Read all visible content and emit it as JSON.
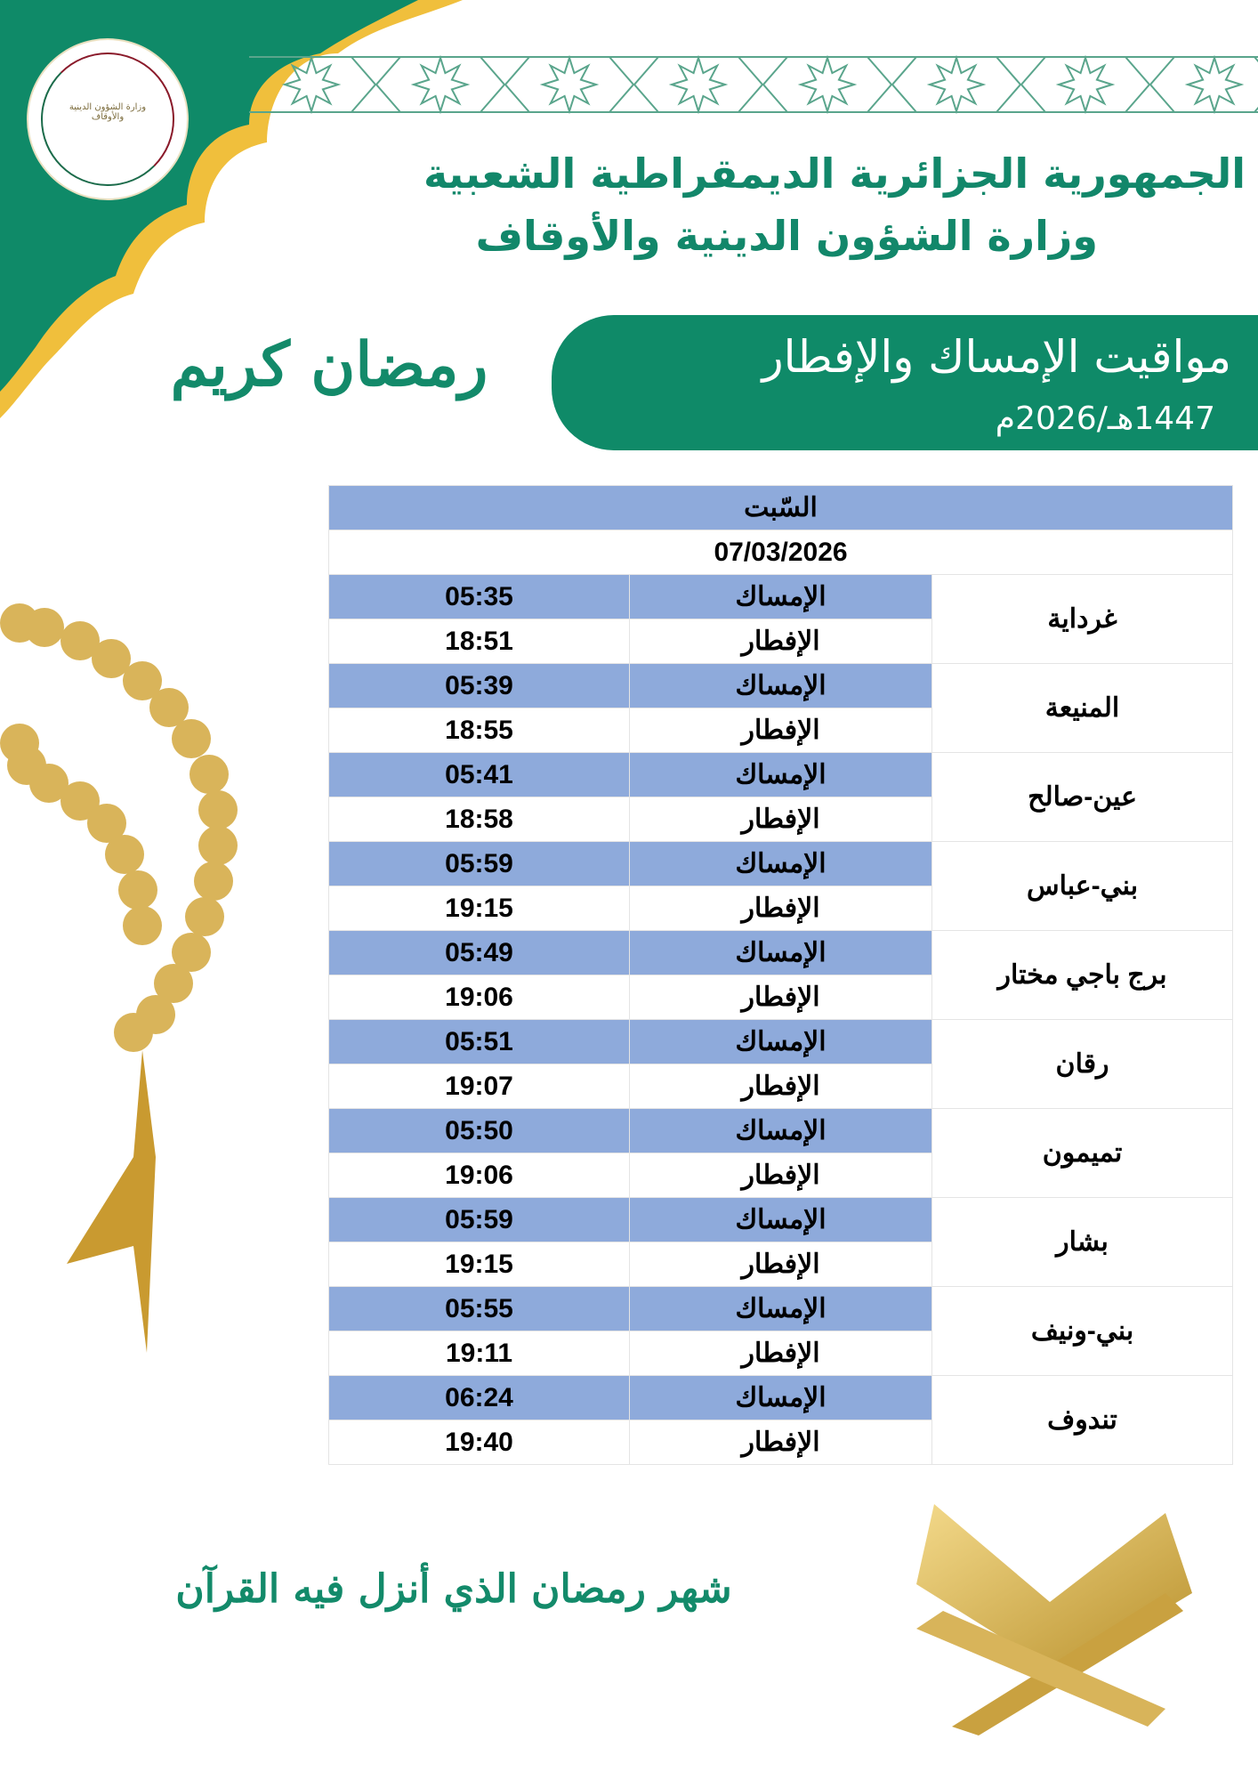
{
  "colors": {
    "brand_green": "#0f8a68",
    "gold": "#f0bf3c",
    "table_blue": "#8eaadb"
  },
  "header": {
    "logo_text": "وزارة الشؤون الدينية والأوقاف",
    "line1": "الجمهورية الجزائرية الديمقراطية الشعبية",
    "line2": "وزارة الشؤون الدينية والأوقاف"
  },
  "banner": {
    "title": "مواقيت الإمساك والإفطار",
    "year": "1447هـ/2026م"
  },
  "calligraphy": {
    "ramadan_kareem": "رمضان كريم",
    "verse": "شهر رمضان الذي أنزل فيه القرآن"
  },
  "table": {
    "day": "السّبت",
    "date": "07/03/2026",
    "imsak_label": "الإمساك",
    "iftar_label": "الإفطار",
    "rows": [
      {
        "city": "غرداية",
        "imsak": "05:35",
        "iftar": "18:51"
      },
      {
        "city": "المنيعة",
        "imsak": "05:39",
        "iftar": "18:55"
      },
      {
        "city": "عين-صالح",
        "imsak": "05:41",
        "iftar": "18:58"
      },
      {
        "city": "بني-عباس",
        "imsak": "05:59",
        "iftar": "19:15"
      },
      {
        "city": "برج باجي مختار",
        "imsak": "05:49",
        "iftar": "19:06"
      },
      {
        "city": "رقان",
        "imsak": "05:51",
        "iftar": "19:07"
      },
      {
        "city": "تميمون",
        "imsak": "05:50",
        "iftar": "19:06"
      },
      {
        "city": "بشار",
        "imsak": "05:59",
        "iftar": "19:15"
      },
      {
        "city": "بني-ونيف",
        "imsak": "05:55",
        "iftar": "19:11"
      },
      {
        "city": "تندوف",
        "imsak": "06:24",
        "iftar": "19:40"
      }
    ]
  }
}
